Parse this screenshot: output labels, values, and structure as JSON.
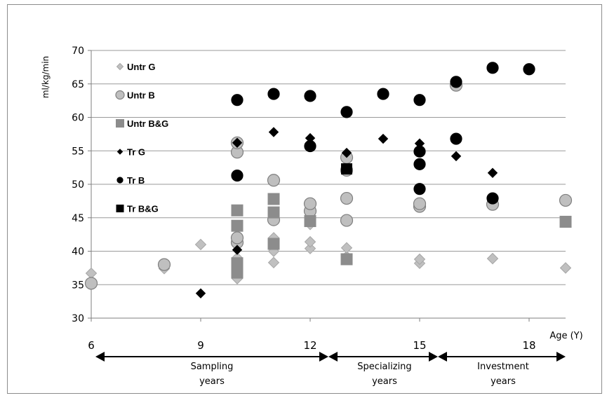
{
  "chart_data": {
    "type": "scatter",
    "ylabel": "ml/kg/min",
    "xlabel": "Age (Y)",
    "xlim": [
      6,
      19
    ],
    "ylim": [
      30,
      70
    ],
    "xticks": [
      "6",
      "9",
      "12",
      "15",
      "18"
    ],
    "yticks": [
      "30",
      "35",
      "40",
      "45",
      "50",
      "55",
      "60",
      "65",
      "70"
    ],
    "grid": "horizontal",
    "legend_position": "top-left",
    "series": [
      {
        "name": "Untr G",
        "marker": "diamond",
        "color": "#c0c0c0",
        "points": [
          [
            6,
            36.7
          ],
          [
            8,
            37.4
          ],
          [
            9,
            41.0
          ],
          [
            10,
            35.9
          ],
          [
            10,
            37.8
          ],
          [
            10,
            39.0
          ],
          [
            11,
            38.3
          ],
          [
            11,
            40.0
          ],
          [
            11,
            42.0
          ],
          [
            12,
            40.4
          ],
          [
            12,
            41.4
          ],
          [
            12,
            44.0
          ],
          [
            13,
            39.2
          ],
          [
            13,
            40.5
          ],
          [
            15,
            38.2
          ],
          [
            15,
            38.8
          ],
          [
            17,
            38.9
          ],
          [
            19,
            37.5
          ]
        ]
      },
      {
        "name": "Untr B",
        "marker": "circle",
        "color": "#bfbfbf",
        "points": [
          [
            6,
            35.2
          ],
          [
            8,
            38.0
          ],
          [
            10,
            41.3
          ],
          [
            10,
            42.0
          ],
          [
            10,
            54.8
          ],
          [
            10,
            56.2
          ],
          [
            11,
            44.7
          ],
          [
            11,
            50.6
          ],
          [
            12,
            46.0
          ],
          [
            12,
            47.1
          ],
          [
            13,
            44.6
          ],
          [
            13,
            47.9
          ],
          [
            13,
            52.1
          ],
          [
            13,
            54.0
          ],
          [
            15,
            46.7
          ],
          [
            15,
            47.1
          ],
          [
            16,
            64.8
          ],
          [
            17,
            47.0
          ],
          [
            19,
            47.6
          ]
        ]
      },
      {
        "name": "Untr B&G",
        "marker": "square",
        "color": "#8c8c8c",
        "points": [
          [
            10,
            36.8
          ],
          [
            10,
            38.2
          ],
          [
            10,
            43.8
          ],
          [
            10,
            46.1
          ],
          [
            11,
            41.1
          ],
          [
            11,
            45.8
          ],
          [
            11,
            47.8
          ],
          [
            12,
            44.5
          ],
          [
            13,
            38.8
          ],
          [
            19,
            44.4
          ]
        ]
      },
      {
        "name": "Tr G",
        "marker": "diamond",
        "color": "#000000",
        "points": [
          [
            9,
            33.7
          ],
          [
            10,
            40.2
          ],
          [
            10,
            56.2
          ],
          [
            11,
            57.8
          ],
          [
            12,
            56.9
          ],
          [
            13,
            54.7
          ],
          [
            14,
            56.8
          ],
          [
            15,
            56.1
          ],
          [
            16,
            54.2
          ],
          [
            17,
            51.7
          ]
        ]
      },
      {
        "name": "Tr B",
        "marker": "circle",
        "color": "#000000",
        "points": [
          [
            10,
            51.3
          ],
          [
            10,
            62.6
          ],
          [
            11,
            63.5
          ],
          [
            12,
            55.7
          ],
          [
            12,
            63.2
          ],
          [
            13,
            60.8
          ],
          [
            14,
            63.5
          ],
          [
            15,
            49.3
          ],
          [
            15,
            53.0
          ],
          [
            15,
            54.9
          ],
          [
            15,
            62.6
          ],
          [
            16,
            56.8
          ],
          [
            16,
            65.3
          ],
          [
            17,
            47.9
          ],
          [
            17,
            67.4
          ],
          [
            18,
            67.2
          ]
        ]
      },
      {
        "name": "Tr B&G",
        "marker": "square",
        "color": "#000000",
        "points": [
          [
            13,
            52.3
          ]
        ]
      }
    ],
    "annotations": [
      {
        "text": [
          "Sampling",
          "years"
        ],
        "from": 6,
        "to": 12.5
      },
      {
        "text": [
          "Specializing",
          "years"
        ],
        "from": 12.5,
        "to": 15.5
      },
      {
        "text": [
          "Investment",
          "years"
        ],
        "from": 15.5,
        "to": 19
      }
    ]
  }
}
